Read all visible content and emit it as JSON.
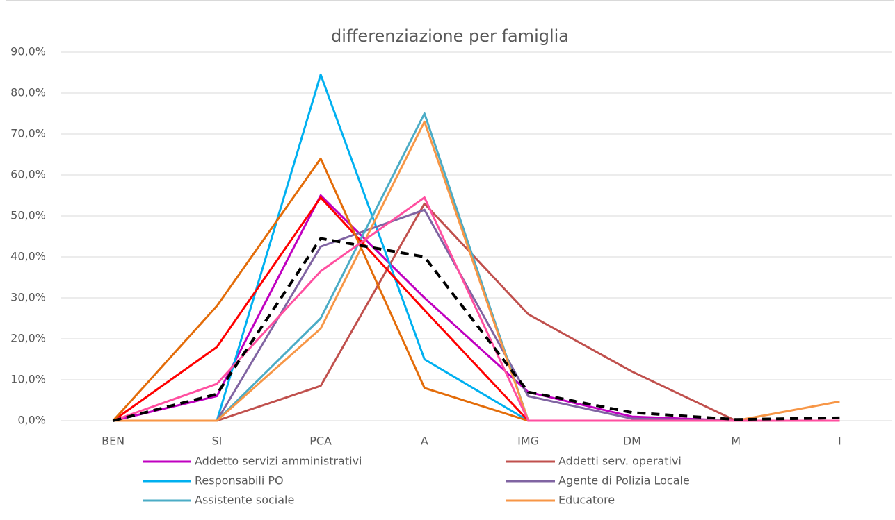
{
  "chart_data": {
    "type": "line",
    "title": "differenziazione per famiglia",
    "categories": [
      "BEN",
      "SI",
      "PCA",
      "A",
      "IMG",
      "DM",
      "M",
      "I"
    ],
    "ylim": [
      0,
      90
    ],
    "yticks": [
      {
        "value": 0,
        "label": "0,0%"
      },
      {
        "value": 10,
        "label": "10,0%"
      },
      {
        "value": 20,
        "label": "20,0%"
      },
      {
        "value": 30,
        "label": "30,0%"
      },
      {
        "value": 40,
        "label": "40,0%"
      },
      {
        "value": 50,
        "label": "50,0%"
      },
      {
        "value": 60,
        "label": "60,0%"
      },
      {
        "value": 70,
        "label": "70,0%"
      },
      {
        "value": 80,
        "label": "80,0%"
      },
      {
        "value": 90,
        "label": "90,0%"
      }
    ],
    "grid": true,
    "legend": "bottom",
    "series": [
      {
        "name": "Addetto servizi amministrativi",
        "color": "#c000c0",
        "values": [
          0,
          6,
          55,
          30,
          7,
          1,
          0,
          0
        ]
      },
      {
        "name": "Addetti serv. operativi",
        "color": "#c0504d",
        "values": [
          0,
          0,
          8.5,
          53,
          26,
          12,
          0,
          0
        ]
      },
      {
        "name": "Responsabili PO",
        "color": "#00b0f0",
        "values": [
          0,
          0,
          84.5,
          15,
          0,
          0,
          0,
          0
        ]
      },
      {
        "name": "Agente di Polizia Locale",
        "color": "#8064a2",
        "values": [
          0,
          0,
          42.5,
          51.5,
          6,
          0.5,
          0,
          0
        ]
      },
      {
        "name": "Assistente sociale",
        "color": "#4bacc6",
        "values": [
          0,
          0,
          25,
          75,
          0,
          0,
          0,
          0
        ]
      },
      {
        "name": "Educatore",
        "color": "#f79646",
        "values": [
          0,
          0,
          22.5,
          73,
          0,
          0,
          0,
          4.7
        ]
      },
      {
        "color": "#ff0000",
        "values": [
          0,
          18,
          54.5,
          27,
          0,
          0,
          0,
          0
        ]
      },
      {
        "color": "#e36c09",
        "values": [
          0,
          28,
          64,
          8,
          0,
          0,
          0,
          0
        ]
      },
      {
        "color": "#ff4fa0",
        "values": [
          0,
          9,
          36.5,
          54.5,
          0,
          0,
          0,
          0
        ]
      },
      {
        "color": "#000000",
        "dashed": true,
        "values": [
          0,
          6.5,
          44.5,
          40,
          7,
          2,
          0.3,
          0.7
        ]
      }
    ]
  }
}
